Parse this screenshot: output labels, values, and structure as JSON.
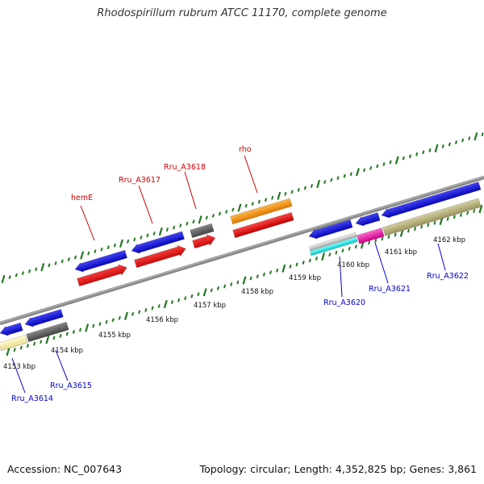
{
  "title": "Rhodospirillum rubrum ATCC 11170, complete genome",
  "footer": {
    "accession": "Accession: NC_007643",
    "summary": "Topology: circular; Length: 4,352,825 bp; Genes: 3,861"
  },
  "scale_labels": [
    "4153 kbp",
    "4154 kbp",
    "4155 kbp",
    "4156 kbp",
    "4157 kbp",
    "4158 kbp",
    "4159 kbp",
    "4160 kbp",
    "4161 kbp",
    "4162 kbp"
  ],
  "gene_labels_top": [
    {
      "text": "hemE",
      "color": "#cc0000"
    },
    {
      "text": "Rru_A3617",
      "color": "#cc0000"
    },
    {
      "text": "Rru_A3618",
      "color": "#cc0000"
    },
    {
      "text": "rho",
      "color": "#cc0000"
    }
  ],
  "gene_labels_bottom": [
    {
      "text": "Rru_A3614",
      "color": "#0000cc"
    },
    {
      "text": "Rru_A3615",
      "color": "#0000cc"
    },
    {
      "text": "Rru_A3620",
      "color": "#0000cc"
    },
    {
      "text": "Rru_A3621",
      "color": "#0000cc"
    },
    {
      "text": "Rru_A3622",
      "color": "#0000cc"
    }
  ],
  "colors": {
    "cds_blue": "#1010e0",
    "rna_red": "#ee1111",
    "gray": "#666666",
    "orange": "#ff9900",
    "yellow": "#f5eeaa",
    "olive": "#b8b27a",
    "cyan": "#22eeee",
    "magenta": "#ee22aa",
    "backbone": "#888888",
    "tick": "#227722"
  }
}
